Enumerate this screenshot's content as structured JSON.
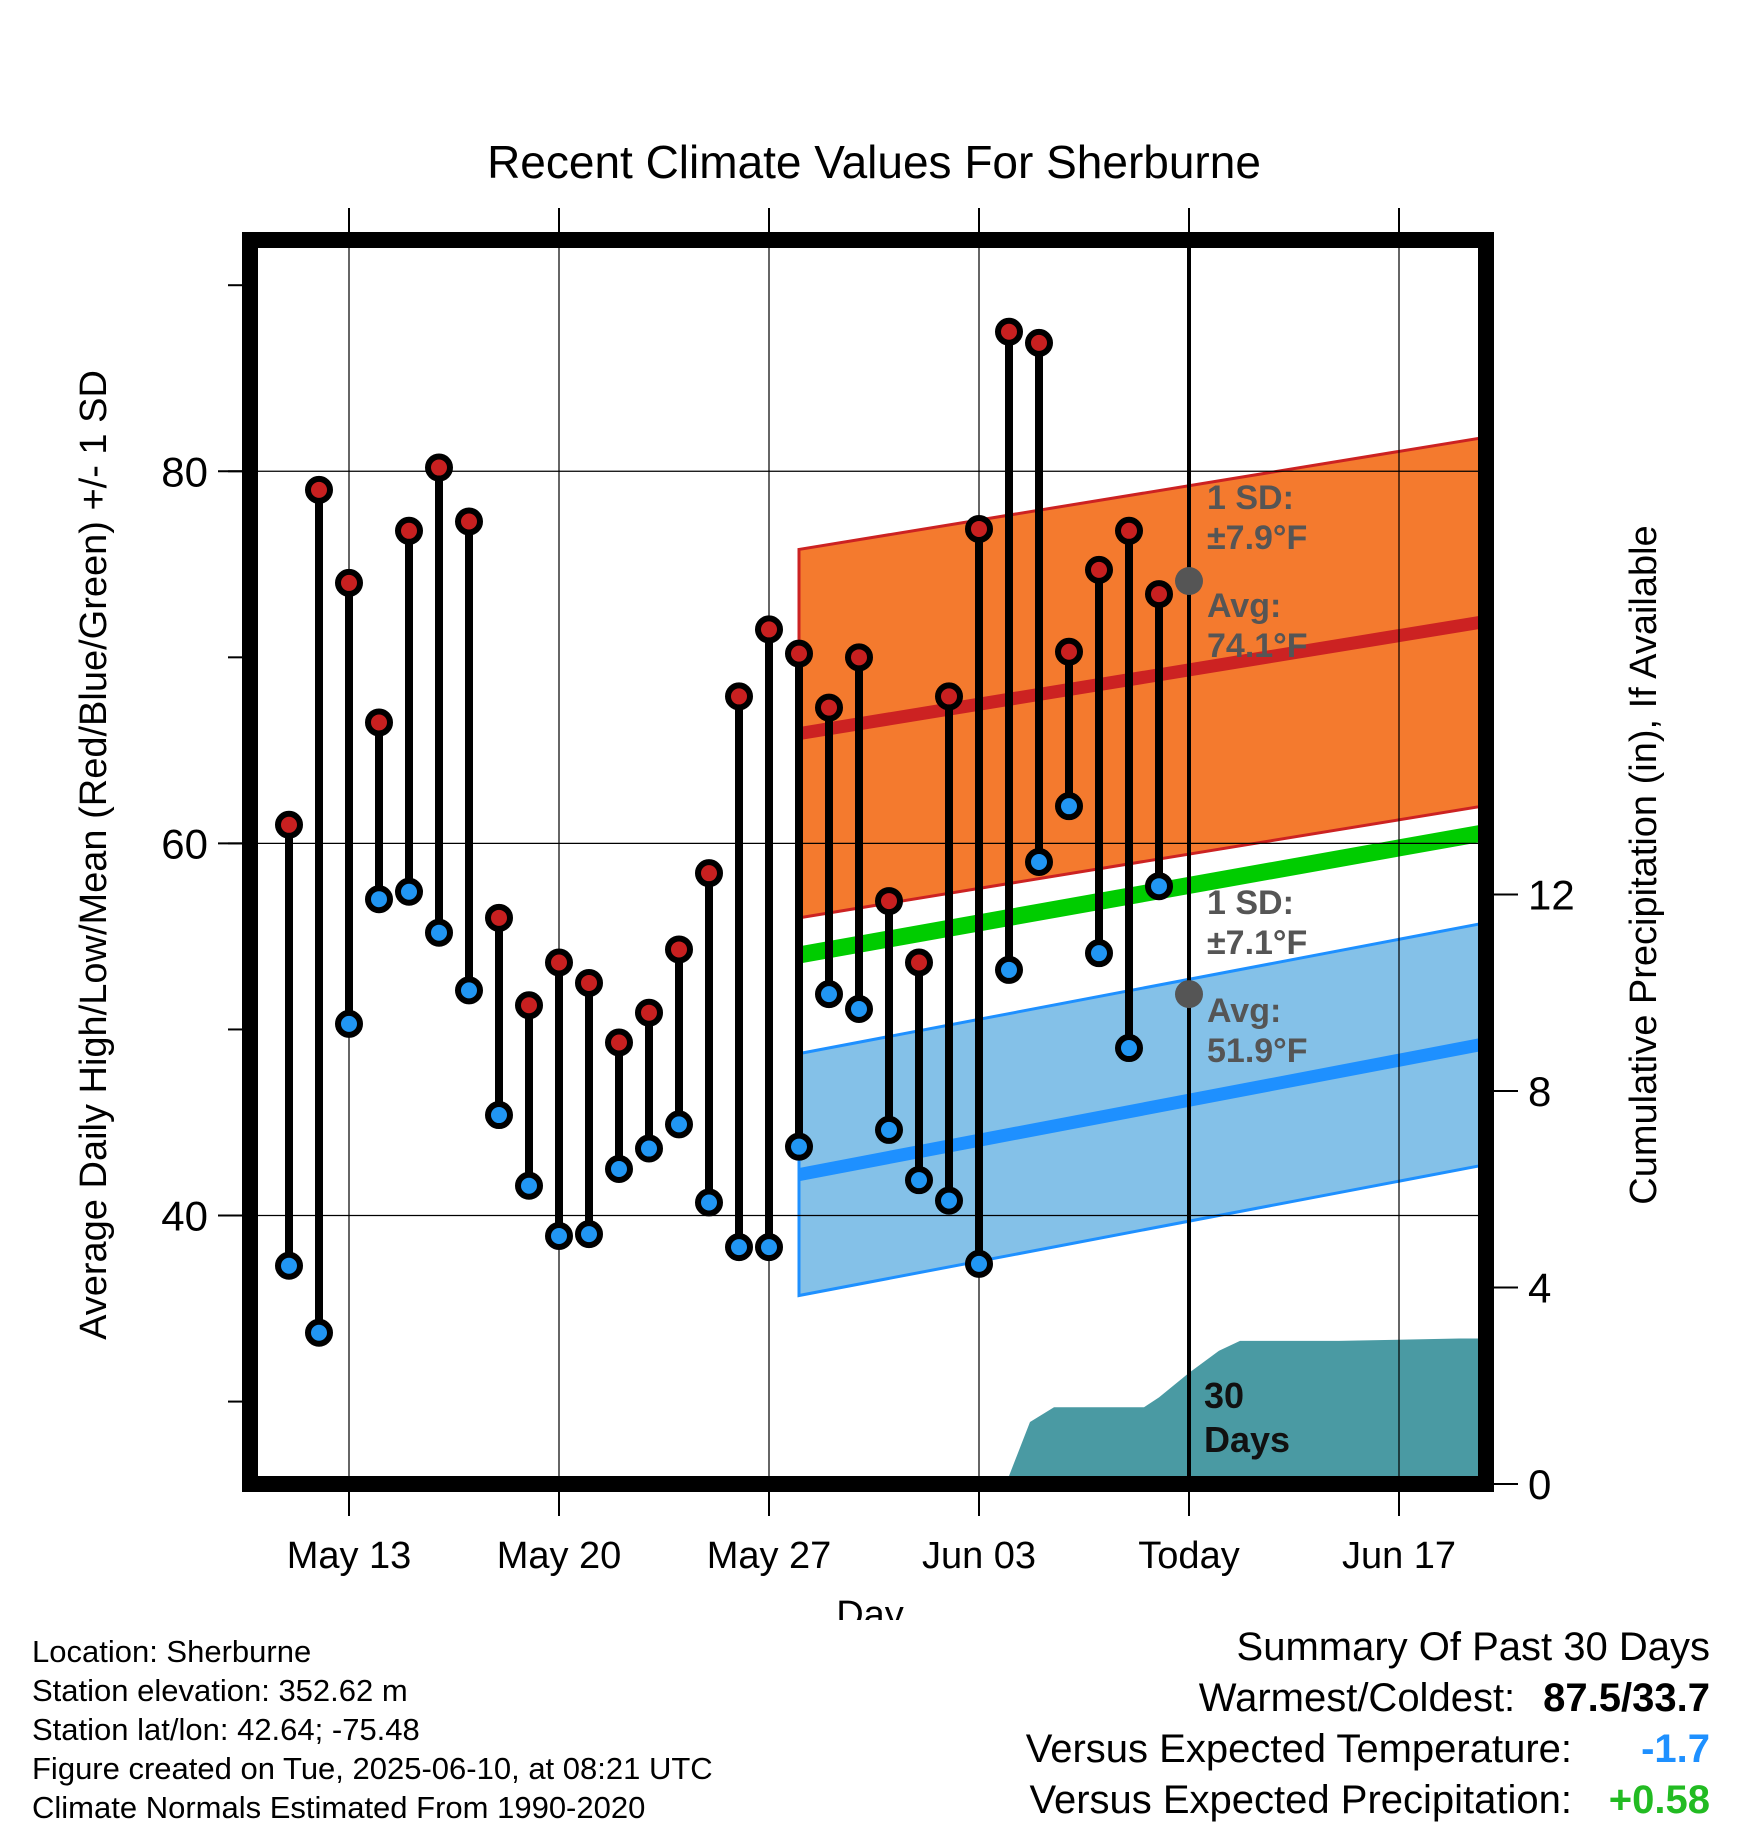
{
  "chart_data": {
    "type": "line",
    "title": "Recent Climate Values For Sherburne",
    "xlabel": "Day",
    "ylabel_left": "Average Daily High/Low/Mean (Red/Blue/Green) +/- 1 SD",
    "ylabel_right": "Cumulative Precipitation (in), If Available",
    "y_left_ticks": [
      "40",
      "60",
      "80"
    ],
    "y_right_ticks": [
      "0",
      "4",
      "8",
      "12"
    ],
    "x_ticks": [
      "May 13",
      "May 20",
      "May 27",
      "Jun 03",
      "Today",
      "Jun 17"
    ],
    "ylim_left": [
      26,
      92
    ],
    "ylim_right": [
      0,
      25
    ],
    "xlim": [
      -13,
      28
    ],
    "days": [
      -30,
      -29,
      -28,
      -27,
      -26,
      -25,
      -24,
      -23,
      -22,
      -21,
      -20,
      -19,
      -18,
      -17,
      -16,
      -15,
      -14,
      -13,
      -12,
      -11,
      -10,
      -9,
      -8,
      -7,
      -6,
      -5,
      -4,
      -3,
      -2,
      -1
    ],
    "highs": [
      61.0,
      79.0,
      74.0,
      66.5,
      76.8,
      80.2,
      77.3,
      56.0,
      51.3,
      53.6,
      52.5,
      49.3,
      50.9,
      54.3,
      58.4,
      67.9,
      71.5,
      70.2,
      67.3,
      70.0,
      56.9,
      53.6,
      67.9,
      76.9,
      87.5,
      86.9,
      70.3,
      74.7,
      76.8,
      73.4
    ],
    "lows": [
      37.3,
      33.7,
      50.3,
      57.0,
      57.4,
      55.2,
      52.1,
      45.4,
      41.6,
      38.9,
      39.0,
      42.5,
      43.6,
      44.9,
      40.7,
      38.3,
      38.3,
      43.7,
      51.9,
      51.1,
      44.6,
      41.9,
      40.8,
      37.4,
      53.2,
      59.0,
      62.0,
      54.1,
      49.0,
      57.7
    ],
    "normal_high": {
      "start": 65.9,
      "end": 76.7,
      "sd": 9.9
    },
    "normal_low": {
      "start": 42.2,
      "end": 54.8,
      "sd": 6.5
    },
    "normal_mean": {
      "start": 54.0,
      "end": 65.8
    },
    "precip_cumulative": [
      [
        -13.5,
        0
      ],
      [
        -6,
        0
      ],
      [
        -5.3,
        1.1
      ],
      [
        -4.5,
        1.4
      ],
      [
        -1.5,
        1.4
      ],
      [
        -1,
        1.6
      ],
      [
        0,
        2.1
      ],
      [
        1,
        2.55
      ],
      [
        1.7,
        2.75
      ],
      [
        5,
        2.75
      ],
      [
        9,
        2.8
      ],
      [
        10,
        2.8
      ],
      [
        11,
        3.05
      ],
      [
        12.5,
        3.1
      ],
      [
        14,
        3.1
      ],
      [
        16,
        3.5
      ],
      [
        17,
        4.35
      ],
      [
        19,
        4.5
      ],
      [
        28,
        4.5
      ]
    ],
    "today_annotations": {
      "high_sd_label": "1 SD:",
      "high_sd_value": "±7.9°F",
      "high_avg_label": "Avg:",
      "high_avg_value": "74.1°F",
      "high_avg": 74.1,
      "low_sd_label": "1 SD:",
      "low_sd_value": "±7.1°F",
      "low_avg_label": "Avg:",
      "low_avg_value": "51.9°F",
      "low_avg": 51.9,
      "days_label_1": "30",
      "days_label_2": "Days"
    },
    "grid": true,
    "colors": {
      "high_band": "#f47a2e",
      "high_line": "#cc2222",
      "low_band": "#84c1e8",
      "low_line": "#1e90ff",
      "mean_line": "#00cc00",
      "precip": "#4a9aa3",
      "high_dot": "#c82020",
      "low_dot": "#2196f3",
      "annotation": "#555555"
    }
  },
  "footer": {
    "location": "Location: Sherburne",
    "elevation": "Station elevation: 352.62 m",
    "latlon": "Station lat/lon: 42.64; -75.48",
    "created": "Figure created on Tue, 2025-06-10, at 08:21 UTC",
    "normals": "Climate Normals Estimated From 1990-2020"
  },
  "summary": {
    "title": "Summary Of Past 30 Days",
    "warmest_label": "Warmest/Coldest:",
    "warmest_value": "87.5/33.7",
    "temp_label": "Versus Expected Temperature:",
    "temp_value": "-1.7",
    "temp_color": "#1e90ff",
    "precip_label": "Versus Expected Precipitation:",
    "precip_value": "+0.58",
    "precip_color": "#22bb22"
  }
}
